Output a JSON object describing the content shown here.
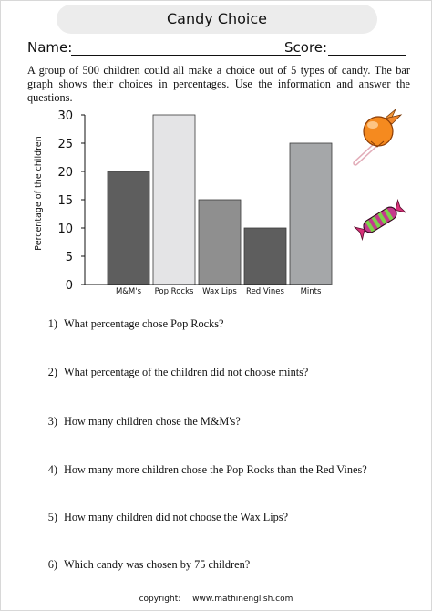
{
  "worksheet": {
    "title": "Candy Choice",
    "name_label": "Name:",
    "score_label": "Score:",
    "intro": "A group of 500 children could all make a choice out of 5 types of candy. The bar graph shows their choices in percentages. Use the information and answer the questions."
  },
  "chart_data": {
    "type": "bar",
    "categories": [
      "M&M's",
      "Pop Rocks",
      "Wax Lips",
      "Red Vines",
      "Mints"
    ],
    "values": [
      20,
      30,
      15,
      10,
      25
    ],
    "ylabel": "Percentage of the children",
    "xlabel": "",
    "ylim": [
      0,
      30
    ],
    "yticks": [
      0,
      5,
      10,
      15,
      20,
      25,
      30
    ],
    "grid": false,
    "bar_colors": [
      "#5e5e5e",
      "#e4e4e6",
      "#8f8f8f",
      "#5e5e5e",
      "#a5a7a9"
    ]
  },
  "questions": [
    {
      "num": "1)",
      "text": "What percentage chose Pop Rocks?"
    },
    {
      "num": "2)",
      "text": "What percentage of the children did not choose mints?"
    },
    {
      "num": "3)",
      "text": "How many children chose the M&M's?"
    },
    {
      "num": "4)",
      "text": "How many more children chose the Pop Rocks than the Red Vines?"
    },
    {
      "num": "5)",
      "text": "How many children did not choose the Wax Lips?"
    },
    {
      "num": "6)",
      "text": "Which candy was chosen by 75 children?"
    }
  ],
  "footer": {
    "label": "copyright:",
    "site": "www.mathinenglish.com"
  },
  "illustrations": {
    "lollipop": "lollipop-icon",
    "wrapped_candy": "wrapped-candy-icon"
  }
}
